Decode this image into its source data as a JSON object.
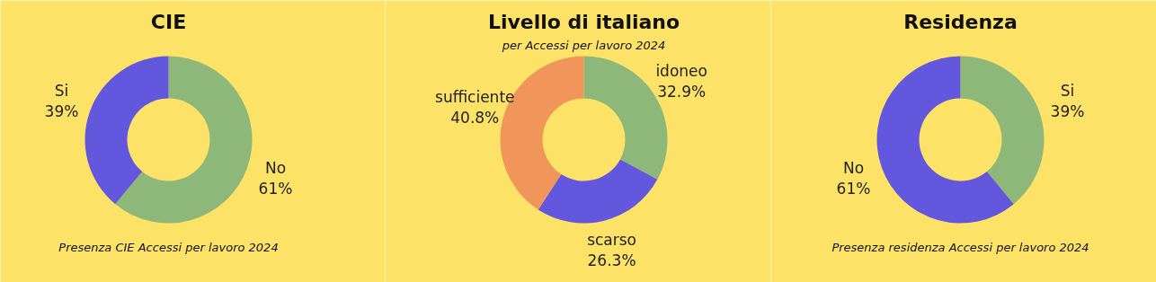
{
  "chart_data": [
    {
      "type": "donut",
      "title": "CIE",
      "categories": [
        "No",
        "Si"
      ],
      "values": [
        61,
        39
      ],
      "colors": [
        "#8db87a",
        "#6358dd"
      ],
      "value_labels": [
        "61%",
        "39%"
      ],
      "annotations": [
        "Presenza CIE Accessi per lavoro 2024"
      ]
    },
    {
      "type": "donut",
      "title": "Livello di italiano",
      "subtitle": "per Accessi per lavoro 2024",
      "categories": [
        "idoneo",
        "scarso",
        "sufficiente"
      ],
      "values": [
        32.9,
        26.3,
        40.8
      ],
      "colors": [
        "#8db87a",
        "#6358dd",
        "#f0965a"
      ],
      "value_labels": [
        "32.9%",
        "26.3%",
        "40.8%"
      ]
    },
    {
      "type": "donut",
      "title": "Residenza",
      "categories": [
        "Si",
        "No"
      ],
      "values": [
        39,
        61
      ],
      "colors": [
        "#8db87a",
        "#6358dd"
      ],
      "value_labels": [
        "39%",
        "61%"
      ],
      "annotations": [
        "Presenza residenza Accessi per lavoro 2024"
      ]
    }
  ]
}
